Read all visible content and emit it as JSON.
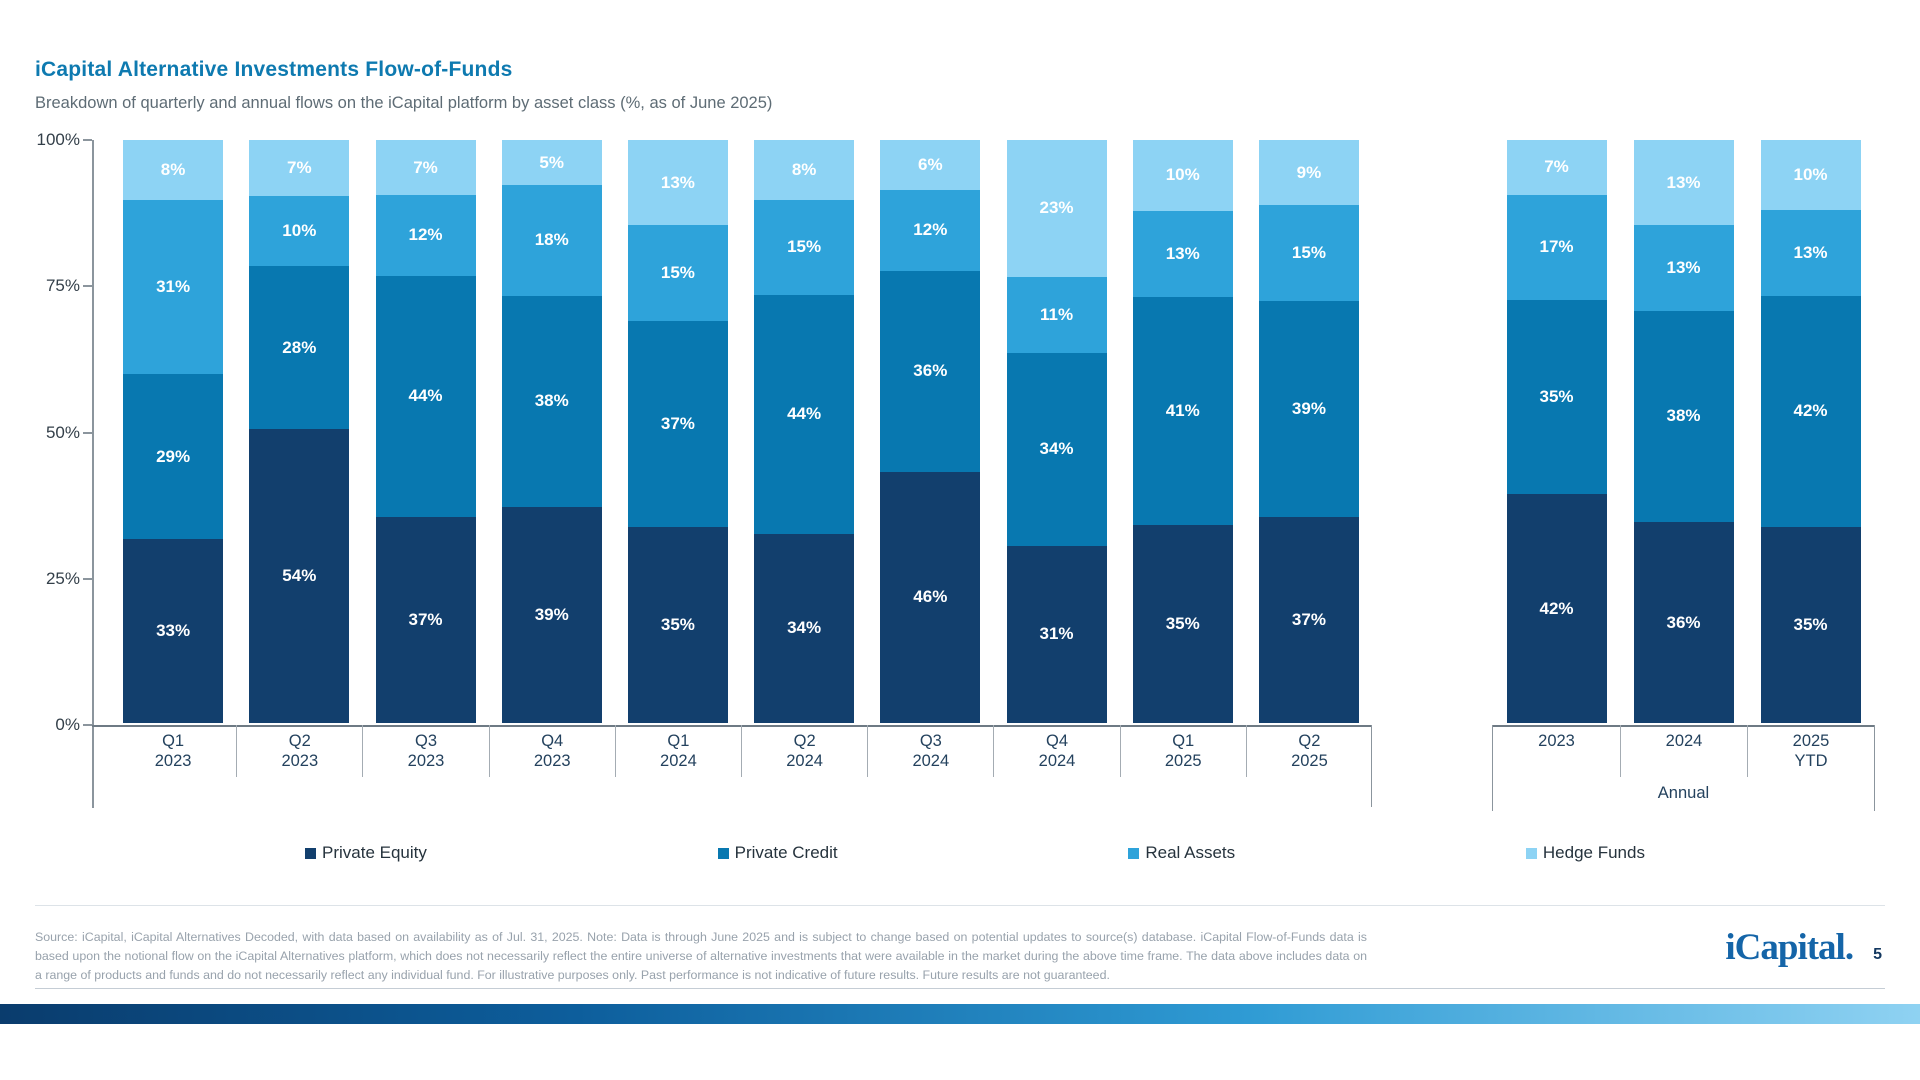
{
  "header": {
    "title": "iCapital Alternative Investments Flow-of-Funds",
    "subtitle": "Breakdown of quarterly and annual flows on the iCapital platform by asset class (%, as of June 2025)"
  },
  "chart_data": {
    "type": "bar",
    "stacked": true,
    "value_unit": "%",
    "ylim": [
      0,
      100
    ],
    "grid": false,
    "legend_position": "bottom",
    "y_ticks": [
      "100%",
      "75%",
      "50%",
      "25%",
      "0%"
    ],
    "series_colors": [
      "#123f6d",
      "#0878b0",
      "#2ea3da",
      "#8dd3f4"
    ],
    "quarterly": {
      "categories": [
        "Q1 2023",
        "Q2 2023",
        "Q3 2023",
        "Q4 2023",
        "Q1 2024",
        "Q2 2024",
        "Q3 2024",
        "Q4 2024",
        "Q1 2025",
        "Q2 2025"
      ],
      "series": [
        {
          "name": "Private Equity",
          "values": [
            33,
            54,
            37,
            39,
            35,
            34,
            46,
            31,
            35,
            37
          ]
        },
        {
          "name": "Private Credit",
          "values": [
            29,
            28,
            44,
            38,
            37,
            44,
            36,
            34,
            41,
            39
          ]
        },
        {
          "name": "Real Assets",
          "values": [
            31,
            10,
            12,
            18,
            15,
            15,
            12,
            11,
            13,
            15
          ]
        },
        {
          "name": "Hedge Funds",
          "values": [
            8,
            7,
            7,
            5,
            13,
            8,
            6,
            23,
            10,
            9
          ]
        }
      ]
    },
    "annual": {
      "group_label": "Annual",
      "categories": [
        "2023",
        "2024",
        "2025 YTD"
      ],
      "series": [
        {
          "name": "Private Equity",
          "values": [
            42,
            36,
            35
          ]
        },
        {
          "name": "Private Credit",
          "values": [
            35,
            38,
            42
          ]
        },
        {
          "name": "Real Assets",
          "values": [
            17,
            13,
            13
          ]
        },
        {
          "name": "Hedge Funds",
          "values": [
            7,
            13,
            10
          ]
        }
      ]
    }
  },
  "legend": {
    "items": [
      {
        "label": "Private Equity",
        "color": "#123f6d"
      },
      {
        "label": "Private Credit",
        "color": "#0878b0"
      },
      {
        "label": "Real Assets",
        "color": "#2ea3da"
      },
      {
        "label": "Hedge Funds",
        "color": "#8dd3f4"
      }
    ]
  },
  "footer": {
    "disclaimer": "Source: iCapital, iCapital Alternatives Decoded, with data based on availability as of Jul. 31, 2025. Note: Data is through June 2025 and is subject to change based on potential updates to source(s) database. iCapital Flow-of-Funds data is based upon the notional flow on the iCapital Alternatives platform, which does not necessarily reflect the entire universe of alternative investments that were available in the market during the above time frame. The data above includes data on a range of products and funds and do not necessarily reflect any individual fund. For illustrative purposes only. Past performance is not indicative of future results. Future results are not guaranteed.",
    "logo_text": "iCapital.",
    "page_number": "5"
  }
}
